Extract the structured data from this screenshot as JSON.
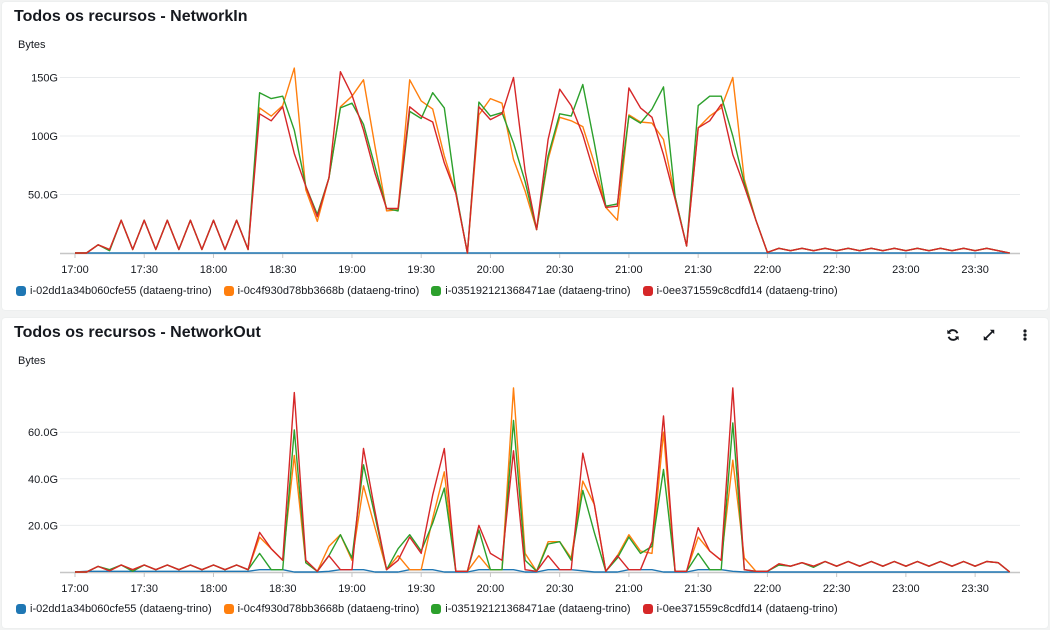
{
  "colors": {
    "blue": "#1f77b4",
    "orange": "#ff7f0e",
    "green": "#2ca02c",
    "red": "#d62728",
    "grid": "#e9ebed"
  },
  "panels": {
    "network_in": {
      "title": "Todos os recursos - NetworkIn",
      "unit": "Bytes"
    },
    "network_out": {
      "title": "Todos os recursos - NetworkOut",
      "unit": "Bytes",
      "icons": [
        "refresh-icon",
        "expand-icon",
        "more-options-icon"
      ]
    }
  },
  "legend": [
    {
      "label": "i-02dd1a34b060cfe55 (dataeng-trino)",
      "color": "#1f77b4"
    },
    {
      "label": "i-0c4f930d78bb3668b (dataeng-trino)",
      "color": "#ff7f0e"
    },
    {
      "label": "i-035192121368471ae (dataeng-trino)",
      "color": "#2ca02c"
    },
    {
      "label": "i-0ee371559c8cdfd14 (dataeng-trino)",
      "color": "#d62728"
    }
  ],
  "chart_data": [
    {
      "type": "line",
      "title": "Todos os recursos - NetworkIn",
      "ylabel": "Bytes",
      "x_start": "17:00",
      "x_step_minutes": 5,
      "xticks": [
        "17:00",
        "17:30",
        "18:00",
        "18:30",
        "19:00",
        "19:30",
        "20:00",
        "20:30",
        "21:00",
        "21:30",
        "22:00",
        "22:30",
        "23:00",
        "23:30"
      ],
      "yticks": [
        {
          "value": 50,
          "label": "50.0G"
        },
        {
          "value": 100,
          "label": "100G"
        },
        {
          "value": 150,
          "label": "150G"
        }
      ],
      "ylim": [
        0,
        165
      ],
      "y_unit": "GB",
      "grid": true,
      "legend": "bottom",
      "series": [
        {
          "name": "i-02dd1a34b060cfe55 (dataeng-trino)",
          "color": "#1f77b4",
          "values": [
            0,
            0,
            0,
            0,
            0,
            0,
            0,
            0,
            0,
            0,
            0,
            0,
            0,
            0,
            0,
            0,
            0,
            0,
            0,
            0,
            0,
            0,
            0,
            0,
            0,
            0,
            0,
            0,
            0,
            0,
            0,
            0,
            0,
            0,
            0,
            0,
            0,
            0,
            0,
            0,
            0,
            0,
            0,
            0,
            0,
            0,
            0,
            0,
            0,
            0,
            0,
            0,
            0,
            0,
            0,
            0,
            0,
            0,
            0,
            0,
            0,
            0,
            0,
            0,
            0,
            0,
            0,
            0,
            0,
            0,
            0,
            0,
            0,
            0,
            0,
            0,
            0,
            0,
            0,
            0,
            0,
            0
          ]
        },
        {
          "name": "i-0c4f930d78bb3668b (dataeng-trino)",
          "color": "#ff7f0e",
          "values": [
            0,
            0,
            7,
            3,
            28,
            3,
            28,
            3,
            28,
            3,
            28,
            3,
            28,
            3,
            28,
            3,
            124,
            117,
            126,
            158,
            54,
            27,
            64,
            125,
            134,
            148,
            91,
            36,
            37,
            148,
            130,
            123,
            83,
            51,
            0,
            118,
            132,
            128,
            80,
            53,
            20,
            80,
            116,
            113,
            108,
            77,
            39,
            28,
            118,
            112,
            111,
            97,
            48,
            6,
            107,
            117,
            124,
            150,
            63,
            28,
            0.5,
            4,
            2,
            4,
            2,
            4,
            2,
            4,
            2,
            4,
            2,
            4,
            2,
            4,
            2,
            4,
            2,
            4,
            2,
            4,
            2,
            0
          ]
        },
        {
          "name": "i-035192121368471ae (dataeng-trino)",
          "color": "#2ca02c",
          "values": [
            0,
            0,
            7,
            2,
            28,
            3,
            28,
            3,
            28,
            3,
            28,
            3,
            28,
            3,
            28,
            3,
            137,
            132,
            134,
            105,
            57,
            33,
            64,
            124,
            128,
            110,
            74,
            38,
            36,
            121,
            115,
            137,
            124,
            53,
            0,
            129,
            117,
            120,
            94,
            61,
            20,
            83,
            119,
            117,
            144,
            94,
            40,
            42,
            117,
            111,
            123,
            142,
            48,
            6,
            126,
            134,
            134,
            100,
            60,
            28,
            0.5,
            4,
            2,
            4,
            2,
            4,
            2,
            4,
            2,
            4,
            2,
            4,
            2,
            4,
            2,
            4,
            2,
            4,
            2,
            4,
            2,
            0
          ]
        },
        {
          "name": "i-0ee371559c8cdfd14 (dataeng-trino)",
          "color": "#d62728",
          "values": [
            0,
            0,
            7,
            3,
            28,
            3,
            28,
            3,
            28,
            3,
            28,
            3,
            28,
            3,
            28,
            3,
            119,
            113,
            125,
            85,
            57,
            31,
            64,
            155,
            135,
            105,
            68,
            38,
            38,
            125,
            117,
            112,
            77,
            51,
            0,
            125,
            114,
            119,
            150,
            70,
            20,
            97,
            140,
            126,
            101,
            68,
            39,
            40,
            141,
            124,
            116,
            84,
            46,
            6,
            107,
            113,
            127,
            84,
            57,
            28,
            0.5,
            4,
            2,
            4,
            2,
            4,
            2,
            4,
            2,
            4,
            2,
            4,
            2,
            4,
            2,
            4,
            2,
            4,
            2,
            4,
            2,
            0
          ]
        }
      ]
    },
    {
      "type": "line",
      "title": "Todos os recursos - NetworkOut",
      "ylabel": "Bytes",
      "x_start": "17:00",
      "x_step_minutes": 5,
      "xticks": [
        "17:00",
        "17:30",
        "18:00",
        "18:30",
        "19:00",
        "19:30",
        "20:00",
        "20:30",
        "21:00",
        "21:30",
        "22:00",
        "22:30",
        "23:00",
        "23:30"
      ],
      "yticks": [
        {
          "value": 20,
          "label": "20.0G"
        },
        {
          "value": 40,
          "label": "40.0G"
        },
        {
          "value": 60,
          "label": "60.0G"
        }
      ],
      "ylim": [
        0,
        84
      ],
      "y_unit": "GB",
      "grid": true,
      "legend": "bottom",
      "series": [
        {
          "name": "i-02dd1a34b060cfe55 (dataeng-trino)",
          "color": "#1f77b4",
          "values": [
            0,
            0.3,
            0.3,
            0.3,
            0.3,
            0.3,
            0.3,
            0.3,
            0.3,
            0.3,
            0.3,
            0.3,
            0.3,
            0.3,
            0.3,
            0.3,
            1,
            1,
            1,
            0,
            0,
            0,
            0.3,
            1,
            1,
            1,
            0,
            0,
            0,
            1,
            1,
            1,
            0,
            0,
            0,
            1,
            1,
            1,
            1,
            0,
            0,
            1,
            1,
            1,
            0.5,
            0,
            0,
            0,
            1,
            1,
            1,
            0,
            0,
            0,
            1,
            1,
            1,
            0.3,
            0,
            0,
            0,
            0,
            0,
            0,
            0,
            0,
            0,
            0,
            0,
            0,
            0,
            0,
            0,
            0,
            0,
            0,
            0,
            0,
            0,
            0,
            0,
            0
          ]
        },
        {
          "name": "i-0c4f930d78bb3668b (dataeng-trino)",
          "color": "#ff7f0e",
          "values": [
            0,
            0,
            2.4,
            0.5,
            3,
            1,
            3,
            1,
            3,
            1,
            3,
            1,
            3,
            1,
            3,
            1,
            15,
            10,
            5,
            50,
            4,
            0.3,
            11,
            16,
            5,
            37,
            19,
            1,
            7,
            1,
            1,
            23,
            43,
            0.3,
            0.3,
            7,
            1,
            1,
            79,
            8,
            0.3,
            13,
            13,
            6,
            39,
            29,
            0.3,
            7,
            16,
            9,
            8,
            60,
            0.3,
            0.3,
            15,
            9,
            5,
            48,
            6,
            0.3,
            0.3,
            3.5,
            2.5,
            4,
            2.5,
            4.5,
            2.5,
            4.5,
            2.5,
            4.5,
            2.5,
            4.5,
            2.5,
            4.5,
            2.5,
            4.5,
            2.5,
            4.5,
            2.5,
            4.5,
            4,
            0
          ]
        },
        {
          "name": "i-035192121368471ae (dataeng-trino)",
          "color": "#2ca02c",
          "values": [
            0,
            0,
            2.4,
            1,
            3,
            0.3,
            3,
            1,
            3,
            1,
            3,
            1,
            3,
            1,
            3,
            1,
            8,
            1,
            1,
            61,
            4,
            0.3,
            7,
            16,
            6,
            46,
            24,
            1,
            10,
            16,
            9,
            21,
            36,
            0.3,
            0.3,
            18,
            1,
            1,
            65,
            5,
            0.3,
            12,
            13,
            5,
            35,
            17,
            0.3,
            6,
            15,
            8,
            11,
            44,
            0.3,
            0.3,
            8,
            1,
            1,
            64,
            1,
            0.3,
            0.3,
            3,
            2.5,
            4,
            2,
            4.5,
            2.5,
            4.5,
            2.5,
            4.5,
            2.5,
            4.5,
            2.5,
            4.5,
            2.5,
            4.5,
            2.5,
            4.5,
            2.5,
            4.5,
            4,
            0
          ]
        },
        {
          "name": "i-0ee371559c8cdfd14 (dataeng-trino)",
          "color": "#d62728",
          "values": [
            0,
            0,
            2.4,
            0.5,
            3,
            1,
            3,
            1,
            3,
            1,
            3,
            1,
            3,
            1,
            3,
            1,
            17,
            10,
            5,
            77,
            5,
            0.3,
            7,
            1,
            1,
            53,
            26,
            1,
            5,
            15,
            8,
            33,
            53,
            0.3,
            0.3,
            20,
            8,
            5,
            52,
            1,
            0.3,
            7,
            1,
            1,
            51,
            29,
            0.3,
            7,
            1,
            1,
            13,
            67,
            0.3,
            0.3,
            19,
            9,
            5,
            79,
            1,
            0.3,
            0.3,
            3.5,
            2.5,
            4,
            2.5,
            4.5,
            2.5,
            4.5,
            2.5,
            4.5,
            2.5,
            4.5,
            2.5,
            4.5,
            2.5,
            4.5,
            2.5,
            4.5,
            2.5,
            4.5,
            4,
            0
          ]
        }
      ]
    }
  ]
}
